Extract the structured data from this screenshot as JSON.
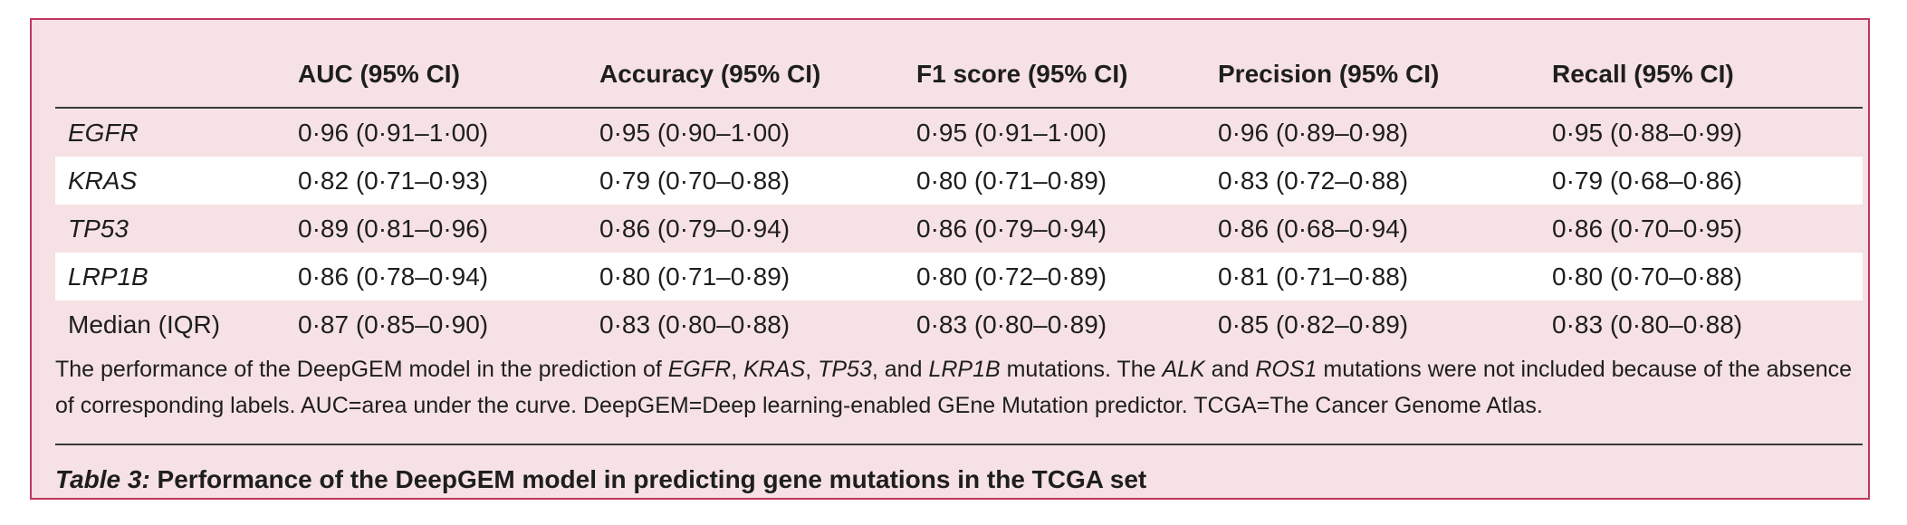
{
  "table": {
    "headers": [
      "",
      "AUC (95% CI)",
      "Accuracy (95% CI)",
      "F1 score (95% CI)",
      "Precision (95% CI)",
      "Recall (95% CI)"
    ],
    "rows": [
      {
        "label": "EGFR",
        "values": [
          "0·96 (0·91–1·00)",
          "0·95 (0·90–1·00)",
          "0·95 (0·91–1·00)",
          "0·96 (0·89–0·98)",
          "0·95 (0·88–0·99)"
        ]
      },
      {
        "label": "KRAS",
        "values": [
          "0·82 (0·71–0·93)",
          "0·79 (0·70–0·88)",
          "0·80 (0·71–0·89)",
          "0·83 (0·72–0·88)",
          "0·79 (0·68–0·86)"
        ]
      },
      {
        "label": "TP53",
        "values": [
          "0·89 (0·81–0·96)",
          "0·86 (0·79–0·94)",
          "0·86 (0·79–0·94)",
          "0·86 (0·68–0·94)",
          "0·86 (0·70–0·95)"
        ]
      },
      {
        "label": "LRP1B",
        "values": [
          "0·86 (0·78–0·94)",
          "0·80 (0·71–0·89)",
          "0·80 (0·72–0·89)",
          "0·81 (0·71–0·88)",
          "0·80 (0·70–0·88)"
        ]
      },
      {
        "label": "Median (IQR)",
        "values": [
          "0·87 (0·85–0·90)",
          "0·83 (0·80–0·88)",
          "0·83 (0·80–0·89)",
          "0·85 (0·82–0·89)",
          "0·83 (0·80–0·88)"
        ]
      }
    ]
  },
  "footnote": {
    "t1": "The performance of the DeepGEM model in the prediction of ",
    "g1": "EGFR",
    "t2": ", ",
    "g2": "KRAS",
    "t3": ", ",
    "g3": "TP53",
    "t4": ", and ",
    "g4": "LRP1B",
    "t5": " mutations. The ",
    "g5": "ALK",
    "t6": " and ",
    "g6": "ROS1",
    "t7": " mutations were not included because of the absence of corresponding labels. AUC=area under the curve. DeepGEM=Deep learning-enabled GEne Mutation predictor. TCGA=The Cancer Genome Atlas."
  },
  "caption": {
    "label": "Table 3:",
    "text": " Performance of the DeepGEM model in predicting gene mutations in the TCGA set"
  }
}
